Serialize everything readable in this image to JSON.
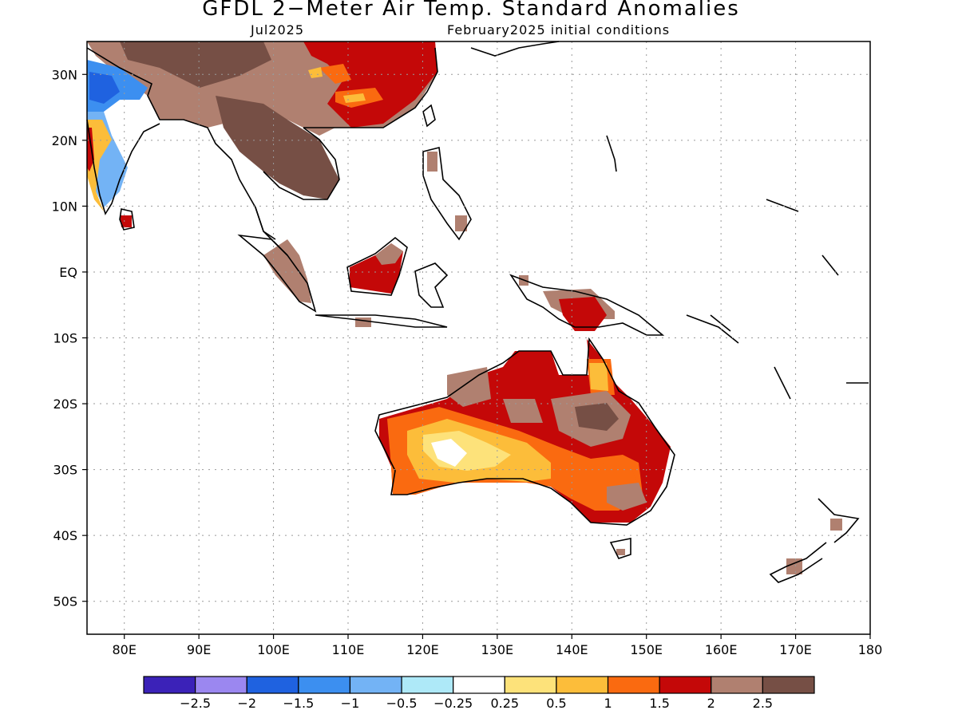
{
  "title": "GFDL 2−Meter Air Temp. Standard Anomalies",
  "subtitle_left": "Jul2025",
  "subtitle_right": "February2025 initial conditions",
  "map": {
    "lon_range": [
      75,
      180
    ],
    "lat_range": [
      -55,
      35
    ],
    "lat_labels": [
      "30N",
      "20N",
      "10N",
      "EQ",
      "10S",
      "20S",
      "30S",
      "40S",
      "50S"
    ],
    "lat_values": [
      30,
      20,
      10,
      0,
      -10,
      -20,
      -30,
      -40,
      -50
    ],
    "lon_labels": [
      "80E",
      "90E",
      "100E",
      "110E",
      "120E",
      "130E",
      "140E",
      "150E",
      "160E",
      "170E",
      "180"
    ],
    "lon_values": [
      80,
      90,
      100,
      110,
      120,
      130,
      140,
      150,
      160,
      170,
      180
    ],
    "gridlines": true
  },
  "colorbar": {
    "labels": [
      "−2.5",
      "−2",
      "−1.5",
      "−1",
      "−0.5",
      "−0.25",
      "0.25",
      "0.5",
      "1",
      "1.5",
      "2",
      "2.5"
    ],
    "colors": [
      "#3b22b8",
      "#9b87f0",
      "#1f62e0",
      "#3c8ff0",
      "#73b3f5",
      "#aee9f8",
      "#ffffff",
      "#fde27a",
      "#fcbd3a",
      "#fa6a10",
      "#c40808",
      "#b08070",
      "#764f45"
    ]
  }
}
